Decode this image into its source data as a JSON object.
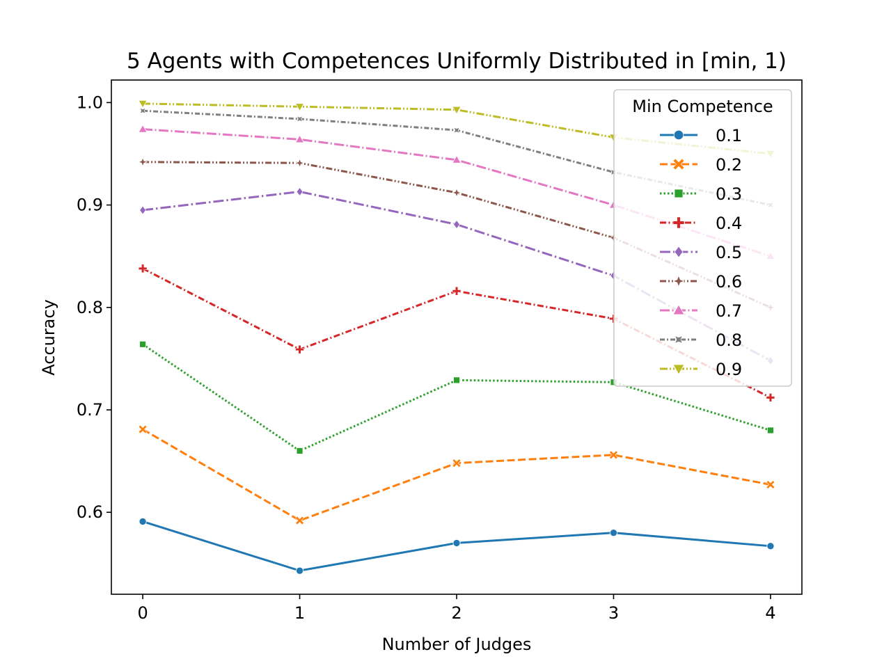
{
  "chart_data": {
    "type": "line",
    "title": "5 Agents with Competences Uniformly Distributed in [min, 1)",
    "xlabel": "Number of Judges",
    "ylabel": "Accuracy",
    "x": [
      0,
      1,
      2,
      3,
      4
    ],
    "xticks": [
      "0",
      "1",
      "2",
      "3",
      "4"
    ],
    "yticks": [
      "0.6",
      "0.7",
      "0.8",
      "0.9",
      "1.0"
    ],
    "ytick_values": [
      0.6,
      0.7,
      0.8,
      0.9,
      1.0
    ],
    "xlim": [
      -0.2,
      4.2
    ],
    "ylim": [
      0.52,
      1.022
    ],
    "grid": false,
    "legend": {
      "title": "Min Competence",
      "placement": "top-right"
    },
    "series": [
      {
        "name": "0.1",
        "color": "#1f77b4",
        "dash": "solid",
        "marker": "circle",
        "values": [
          0.591,
          0.543,
          0.57,
          0.58,
          0.567
        ]
      },
      {
        "name": "0.2",
        "color": "#ff7f0e",
        "dash": "dashed",
        "marker": "x",
        "values": [
          0.681,
          0.592,
          0.648,
          0.656,
          0.627
        ]
      },
      {
        "name": "0.3",
        "color": "#2ca02c",
        "dash": "dotted",
        "marker": "square",
        "values": [
          0.764,
          0.66,
          0.729,
          0.727,
          0.68
        ]
      },
      {
        "name": "0.4",
        "color": "#d62728",
        "dash": "dashdot",
        "marker": "plus",
        "values": [
          0.838,
          0.759,
          0.816,
          0.789,
          0.712
        ]
      },
      {
        "name": "0.5",
        "color": "#9467bd",
        "dash": "longdashdot",
        "marker": "diamond",
        "values": [
          0.895,
          0.913,
          0.881,
          0.831,
          0.748
        ]
      },
      {
        "name": "0.6",
        "color": "#8c564b",
        "dash": "dashdotdot",
        "marker": "star4",
        "values": [
          0.942,
          0.941,
          0.912,
          0.868,
          0.8
        ]
      },
      {
        "name": "0.7",
        "color": "#e377c2",
        "dash": "longdashdot2",
        "marker": "triangle-up",
        "values": [
          0.974,
          0.964,
          0.944,
          0.9,
          0.85
        ]
      },
      {
        "name": "0.8",
        "color": "#7f7f7f",
        "dash": "dashdot2",
        "marker": "star",
        "values": [
          0.992,
          0.984,
          0.973,
          0.932,
          0.9
        ]
      },
      {
        "name": "0.9",
        "color": "#bcbd22",
        "dash": "dashdotdot2",
        "marker": "triangle-down",
        "values": [
          0.999,
          0.996,
          0.993,
          0.966,
          0.95
        ]
      }
    ]
  }
}
